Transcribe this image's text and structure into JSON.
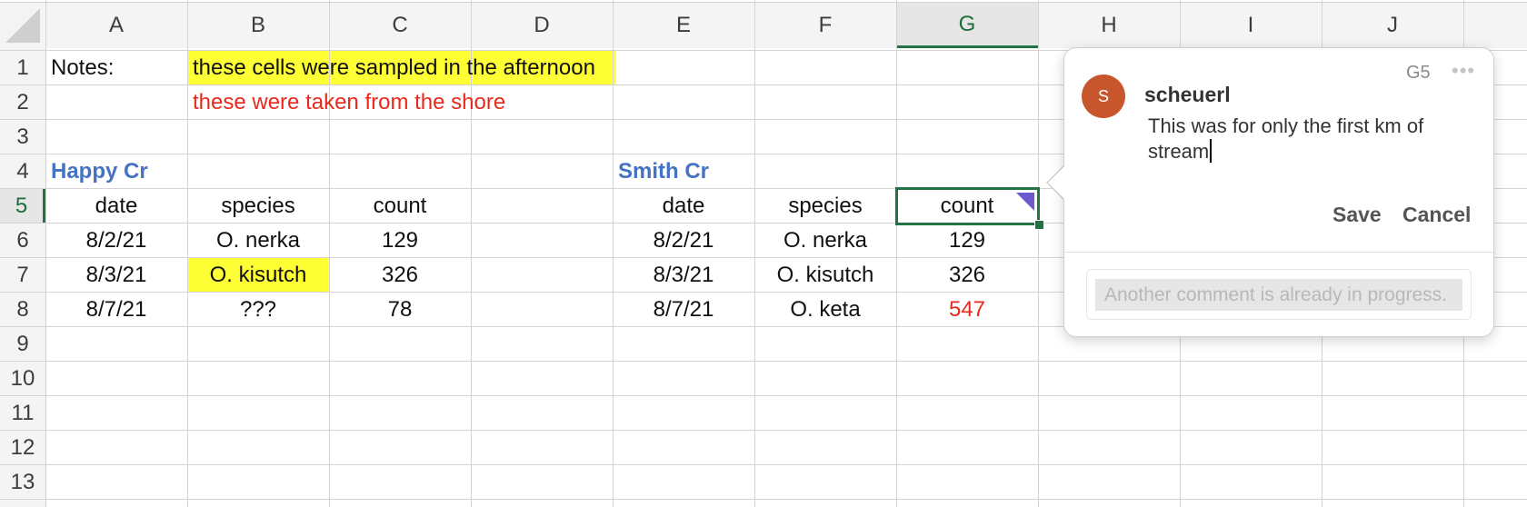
{
  "columns": [
    "A",
    "B",
    "C",
    "D",
    "E",
    "F",
    "G",
    "H",
    "I",
    "J"
  ],
  "rows": [
    "1",
    "2",
    "3",
    "4",
    "5",
    "6",
    "7",
    "8",
    "9",
    "10",
    "11",
    "12",
    "13"
  ],
  "selected": {
    "column": "G",
    "row": "5"
  },
  "cells": {
    "A1": "Notes:",
    "B1": "these cells were sampled in the afternoon",
    "B2": "these were taken from the shore",
    "A4": "Happy Cr",
    "E4": "Smith Cr",
    "A5": "date",
    "B5": "species",
    "C5": "count",
    "A6": "8/2/21",
    "B6": "O. nerka",
    "C6": "129",
    "A7": "8/3/21",
    "B7": "O. kisutch",
    "C7": "326",
    "A8": "8/7/21",
    "B8": "???",
    "C8": "78",
    "E5": "date",
    "F5": "species",
    "G5": "count",
    "E6": "8/2/21",
    "F6": "O. nerka",
    "G6": "129",
    "E7": "8/3/21",
    "F7": "O. kisutch",
    "G7": "326",
    "E8": "8/7/21",
    "F8": "O. keta",
    "G8": "547"
  },
  "colors": {
    "highlight_yellow": "#ffff35",
    "note_red": "#e8291c",
    "header_blue": "#4472c4",
    "selection_green": "#217346",
    "comment_indicator": "#6a5acd",
    "avatar": "#c8562c"
  },
  "comment": {
    "cell_ref": "G5",
    "more_label": "•••",
    "avatar_initial": "S",
    "author": "scheuerl",
    "text": "This was for only the first km of stream",
    "save_label": "Save",
    "cancel_label": "Cancel",
    "reply_placeholder": "Another comment is already in progress."
  }
}
